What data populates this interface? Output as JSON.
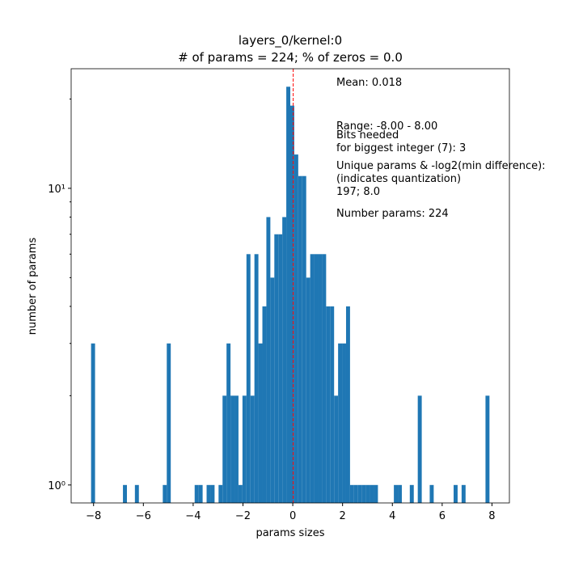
{
  "chart_data": {
    "type": "histogram",
    "title": "layers_0/kernel:0",
    "subtitle": "# of params = 224; % of zeros = 0.0",
    "x_label": "params sizes",
    "y_label": "number of params",
    "color": "#1f77b4",
    "yscale": "log",
    "xlim": [
      -8.9,
      8.7
    ],
    "ylim": [
      0.87,
      25.3
    ],
    "xticks": [
      {
        "value": -8,
        "label": "−8"
      },
      {
        "value": -6,
        "label": "−6"
      },
      {
        "value": -4,
        "label": "−4"
      },
      {
        "value": -2,
        "label": "−2"
      },
      0,
      2,
      4,
      6,
      8
    ],
    "yticks": [
      {
        "value": 1,
        "label": "10⁰"
      },
      {
        "value": 10,
        "label": "10¹"
      }
    ],
    "yminor_ticks": [
      2,
      3,
      4,
      5,
      6,
      7,
      8,
      9,
      20
    ],
    "mean_line": {
      "value": 0.018,
      "color": "#ff0000"
    },
    "bins": [
      -8.1,
      -7.94,
      -7.78,
      -7.62,
      -7.46,
      -7.3,
      -7.14,
      -6.98,
      -6.82,
      -6.66,
      -6.5,
      -6.34,
      -6.18,
      -6.02,
      -5.86,
      -5.7,
      -5.54,
      -5.38,
      -5.22,
      -5.06,
      -4.9,
      -4.74,
      -4.58,
      -4.42,
      -4.26,
      -4.1,
      -3.94,
      -3.78,
      -3.62,
      -3.46,
      -3.3,
      -3.14,
      -2.98,
      -2.82,
      -2.66,
      -2.5,
      -2.34,
      -2.18,
      -2.02,
      -1.86,
      -1.7,
      -1.54,
      -1.38,
      -1.22,
      -1.06,
      -0.9,
      -0.74,
      -0.58,
      -0.42,
      -0.26,
      -0.1,
      0.06,
      0.22,
      0.38,
      0.54,
      0.7,
      0.86,
      1.02,
      1.18,
      1.34,
      1.5,
      1.66,
      1.82,
      1.98,
      2.14,
      2.3,
      2.46,
      2.62,
      2.78,
      2.94,
      3.1,
      3.26,
      3.42,
      3.58,
      3.74,
      3.9,
      4.06,
      4.22,
      4.38,
      4.54,
      4.7,
      4.86,
      5.02,
      5.18,
      5.34,
      5.5,
      5.66,
      5.82,
      5.98,
      6.14,
      6.3,
      6.46,
      6.62,
      6.78,
      6.94,
      7.1,
      7.26,
      7.42,
      7.58,
      7.74,
      7.9
    ],
    "counts": [
      3,
      0,
      0,
      0,
      0,
      0,
      0,
      0,
      1,
      0,
      0,
      1,
      0,
      0,
      0,
      0,
      0,
      0,
      1,
      3,
      0,
      0,
      0,
      0,
      0,
      0,
      1,
      1,
      0,
      1,
      1,
      0,
      1,
      2,
      3,
      2,
      2,
      1,
      2,
      6,
      2,
      6,
      3,
      4,
      8,
      5,
      7,
      7,
      8,
      22,
      19,
      13,
      11,
      11,
      5,
      6,
      6,
      6,
      6,
      4,
      4,
      2,
      3,
      3,
      4,
      1,
      1,
      1,
      1,
      1,
      1,
      1,
      0,
      0,
      0,
      0,
      1,
      1,
      0,
      0,
      1,
      0,
      2,
      0,
      0,
      1,
      0,
      0,
      0,
      0,
      0,
      1,
      0,
      1,
      0,
      0,
      0,
      0,
      0,
      2
    ],
    "annotations": [
      [
        "Mean: 0.018"
      ],
      [
        "Range: -8.00 - 8.00"
      ],
      [
        "Bits needed",
        "for biggest integer (7): 3"
      ],
      [
        "Unique params & -log2(min difference):",
        "(indicates quantization)",
        "197; 8.0"
      ],
      [
        "Number params: 224"
      ]
    ]
  }
}
